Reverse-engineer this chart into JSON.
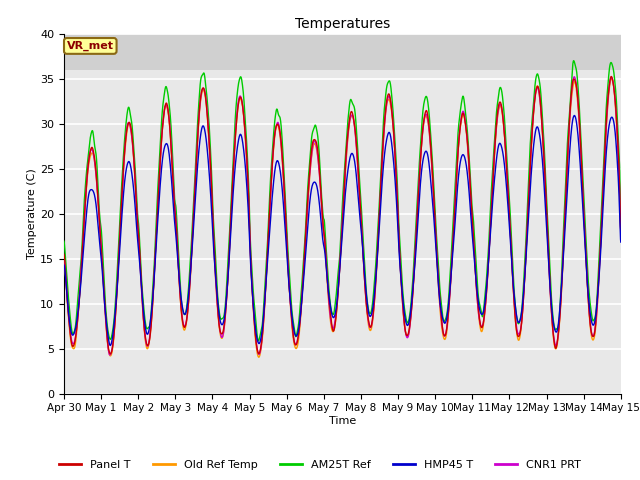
{
  "title": "Temperatures",
  "xlabel": "Time",
  "ylabel": "Temperature (C)",
  "ylim": [
    0,
    40
  ],
  "site_label": "VR_met",
  "background_color": "#ffffff",
  "plot_bg_color": "#e8e8e8",
  "shade_above": 36,
  "shade_color": "#d0d0d0",
  "grid_color": "white",
  "lines": [
    {
      "label": "Panel T",
      "color": "#cc0000"
    },
    {
      "label": "Old Ref Temp",
      "color": "#ff9900"
    },
    {
      "label": "AM25T Ref",
      "color": "#00cc00"
    },
    {
      "label": "HMP45 T",
      "color": "#0000cc"
    },
    {
      "label": "CNR1 PRT",
      "color": "#cc00cc"
    }
  ],
  "xticklabels": [
    "Apr 30",
    "May 1",
    "May 2",
    "May 3",
    "May 4",
    "May 5",
    "May 6",
    "May 7",
    "May 8",
    "May 9",
    "May 10",
    "May 11",
    "May 12",
    "May 13",
    "May 14",
    "May 15"
  ],
  "yticks": [
    0,
    5,
    10,
    15,
    20,
    25,
    30,
    35,
    40
  ],
  "days": 15,
  "points_per_day": 144
}
